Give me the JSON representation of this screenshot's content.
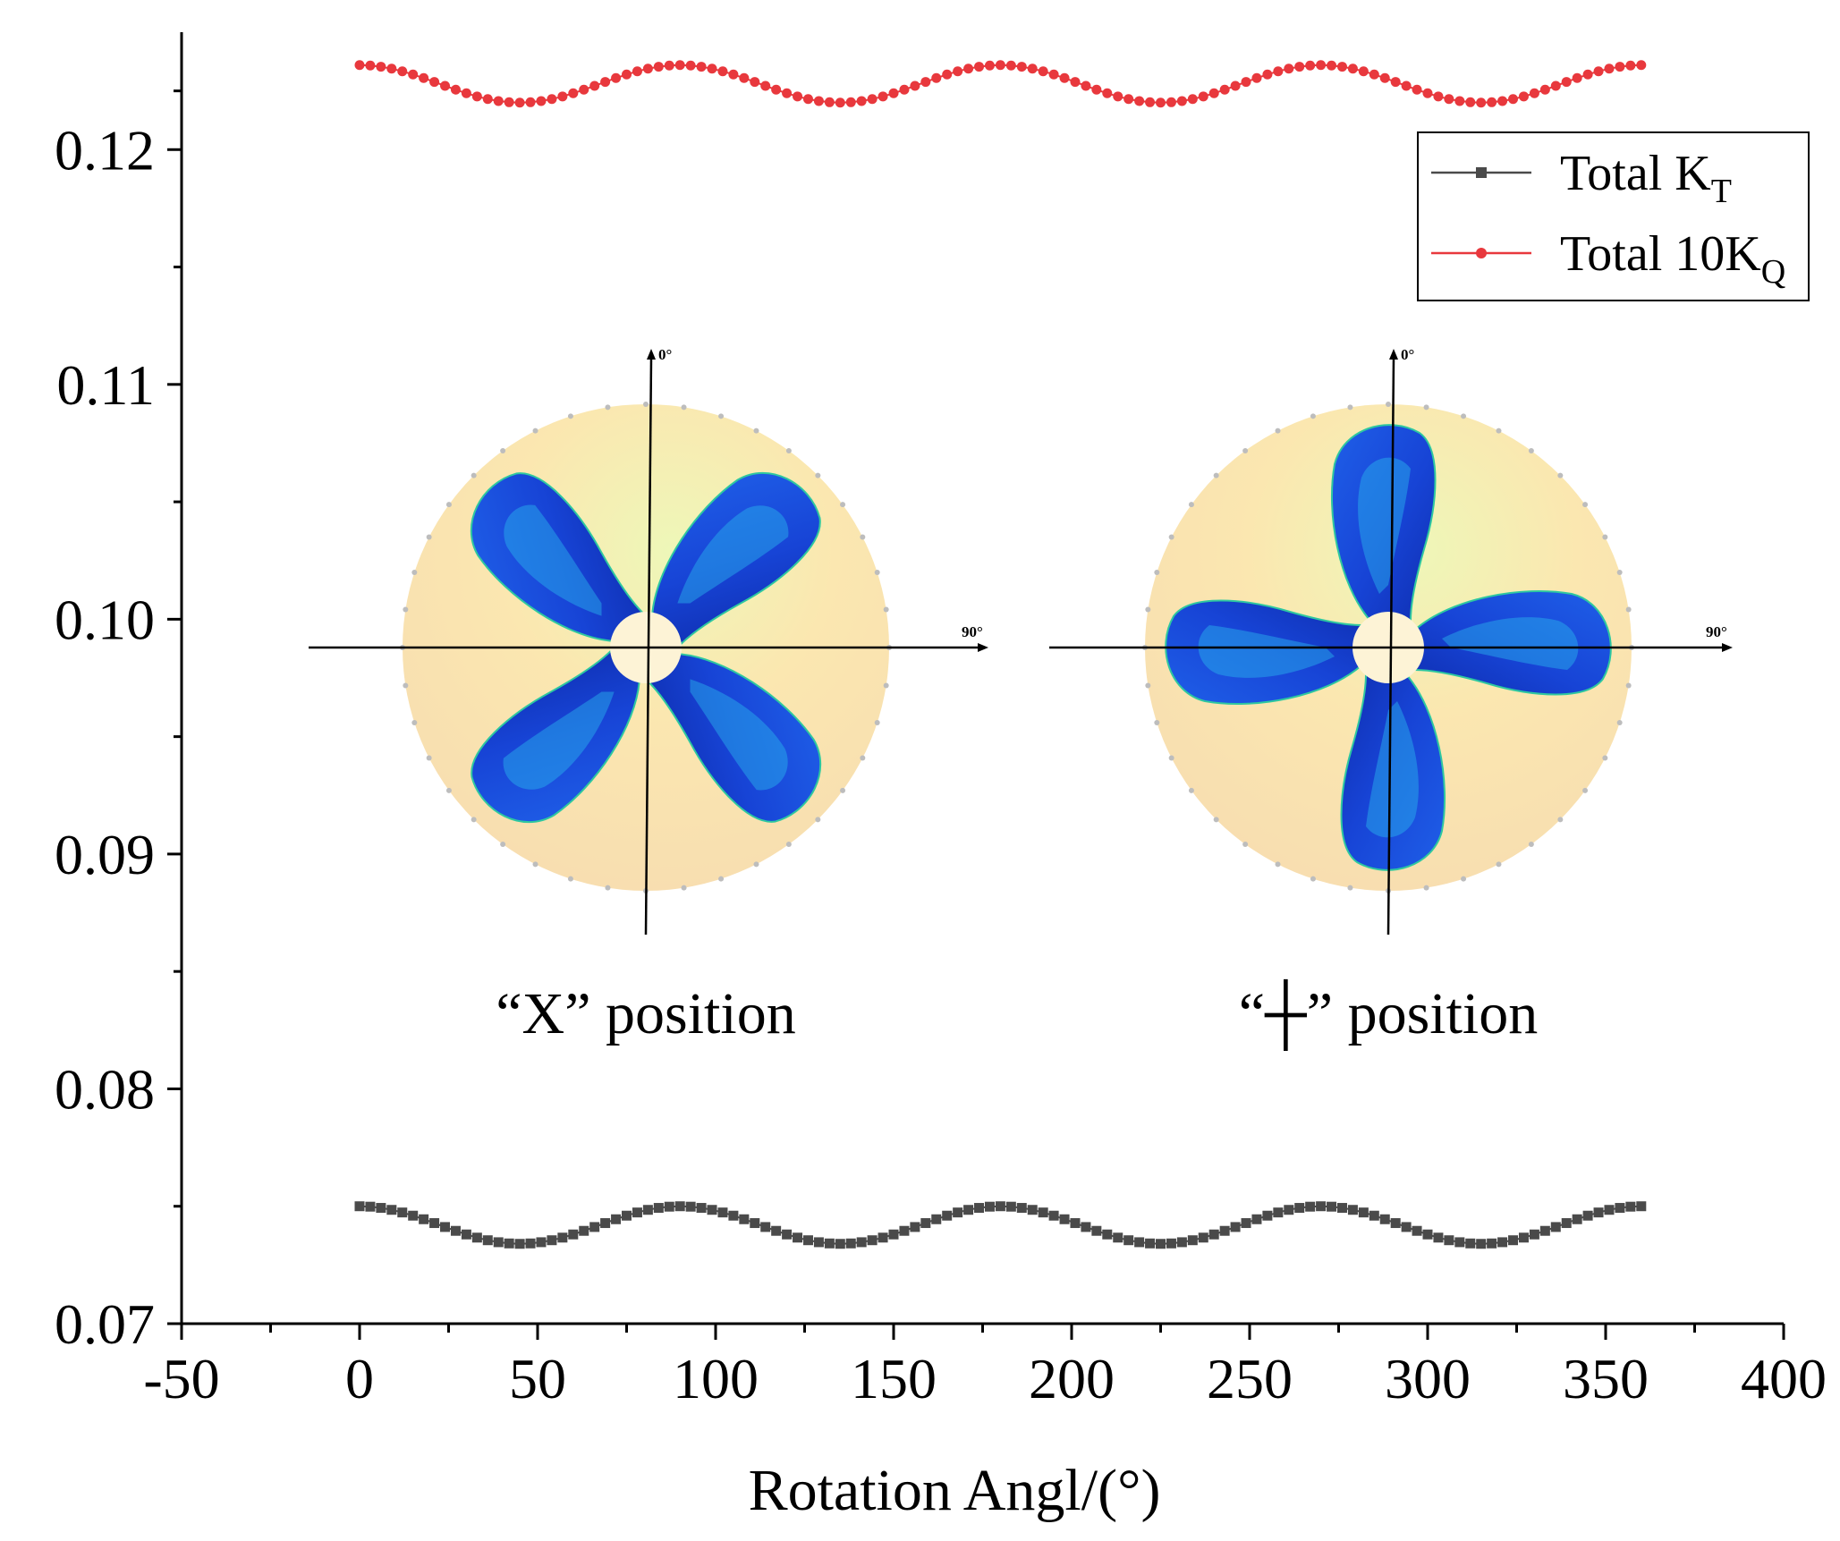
{
  "chart_data": {
    "type": "line",
    "title": "",
    "xlabel": "Rotation Angl/(°)",
    "ylabel": "",
    "xlim": [
      -50,
      400
    ],
    "ylim": [
      0.07,
      0.125
    ],
    "x_ticks": [
      -50,
      0,
      50,
      100,
      150,
      200,
      250,
      300,
      350,
      400
    ],
    "x_tick_labels": [
      "-50",
      "0",
      "50",
      "100",
      "150",
      "200",
      "250",
      "300",
      "350",
      "400"
    ],
    "y_ticks": [
      0.07,
      0.08,
      0.09,
      0.1,
      0.11,
      0.12
    ],
    "y_tick_labels": [
      "0.07",
      "0.08",
      "0.09",
      "0.10",
      "0.11",
      "0.12"
    ],
    "grid": false,
    "legend_position": "top-right",
    "series": [
      {
        "name": "Total K_T",
        "label_main": "Total K",
        "label_sub": "T",
        "color": "#4a4a4a",
        "marker": "square",
        "x_range": [
          0,
          360
        ],
        "x_step": 3,
        "mean": 0.0742,
        "amplitude": 0.0008,
        "period_deg": 90,
        "phase_deg": 0,
        "key_points": [
          [
            0,
            0.075
          ],
          [
            45,
            0.0734
          ],
          [
            90,
            0.075
          ],
          [
            135,
            0.0734
          ],
          [
            180,
            0.075
          ],
          [
            225,
            0.0734
          ],
          [
            270,
            0.075
          ],
          [
            315,
            0.0734
          ],
          [
            360,
            0.075
          ]
        ]
      },
      {
        "name": "Total 10K_Q",
        "label_main": "Total 10K",
        "label_sub": "Q",
        "color": "#e8383d",
        "marker": "circle",
        "x_range": [
          0,
          360
        ],
        "x_step": 3,
        "mean": 0.1228,
        "amplitude": 0.0008,
        "period_deg": 90,
        "phase_deg": 0,
        "key_points": [
          [
            0,
            0.1236
          ],
          [
            45,
            0.122
          ],
          [
            90,
            0.1236
          ],
          [
            135,
            0.122
          ],
          [
            180,
            0.1236
          ],
          [
            225,
            0.122
          ],
          [
            270,
            0.1236
          ],
          [
            315,
            0.122
          ],
          [
            360,
            0.1236
          ]
        ]
      }
    ],
    "insets": [
      {
        "caption": "“X” position",
        "blade_angles_deg": [
          45,
          135,
          225,
          315
        ],
        "angle_labels": {
          "top": "0°",
          "right": "90°"
        }
      },
      {
        "caption": "“┼” position",
        "blade_angles_deg": [
          0,
          90,
          180,
          270
        ],
        "angle_labels": {
          "top": "0°",
          "right": "90°"
        }
      }
    ]
  },
  "colors": {
    "axis": "#000000",
    "disk_fill": "#fbe6ad",
    "disk_highlight": "#eaf5b4",
    "disk_dots": "#bdbdbd",
    "blade_dark": "#1232c2",
    "blade_mid": "#1f5be6",
    "blade_light": "#2ab8ee",
    "hub": "#fdf3d6"
  }
}
